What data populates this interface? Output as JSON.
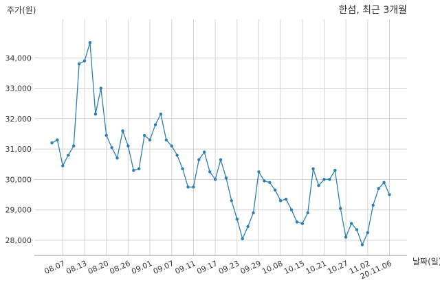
{
  "chart_data": {
    "type": "line",
    "title": "한섬, 최근 3개월",
    "ylabel": "주가(원)",
    "xlabel": "날짜(일)",
    "ylim": [
      27500,
      35000
    ],
    "y_ticks": [
      28000,
      29000,
      30000,
      31000,
      32000,
      33000,
      34000
    ],
    "y_tick_labels": [
      "28,000",
      "29,000",
      "30,000",
      "31,000",
      "32,000",
      "33,000",
      "34,000"
    ],
    "x_tick_labels": [
      "08.07",
      "08.13",
      "08.20",
      "08.26",
      "09.01",
      "09.07",
      "09.11",
      "09.17",
      "09.23",
      "09.29",
      "10.08",
      "10.15",
      "10.21",
      "10.27",
      "11.02",
      "20.11.06"
    ],
    "x_tick_indices": [
      2,
      6,
      10,
      14,
      18,
      22,
      26,
      30,
      34,
      38,
      42,
      46,
      50,
      54,
      58,
      62
    ],
    "grid": true,
    "series": [
      {
        "color": "#2a7fb4",
        "values": [
          31200,
          31300,
          30450,
          30800,
          31100,
          33800,
          33900,
          34500,
          32150,
          33000,
          31450,
          31050,
          30700,
          31600,
          31100,
          30300,
          30350,
          31450,
          31300,
          31800,
          32150,
          31300,
          31100,
          30800,
          30350,
          29750,
          29750,
          30650,
          30900,
          30250,
          30000,
          30650,
          30050,
          29300,
          28700,
          28050,
          28450,
          28900,
          30250,
          29950,
          29900,
          29650,
          29300,
          29350,
          29000,
          28600,
          28550,
          28900,
          30350,
          29800,
          30000,
          30000,
          30300,
          29050,
          28100,
          28550,
          28350,
          27850,
          28250,
          29150,
          29700,
          29900,
          29500
        ]
      }
    ]
  }
}
